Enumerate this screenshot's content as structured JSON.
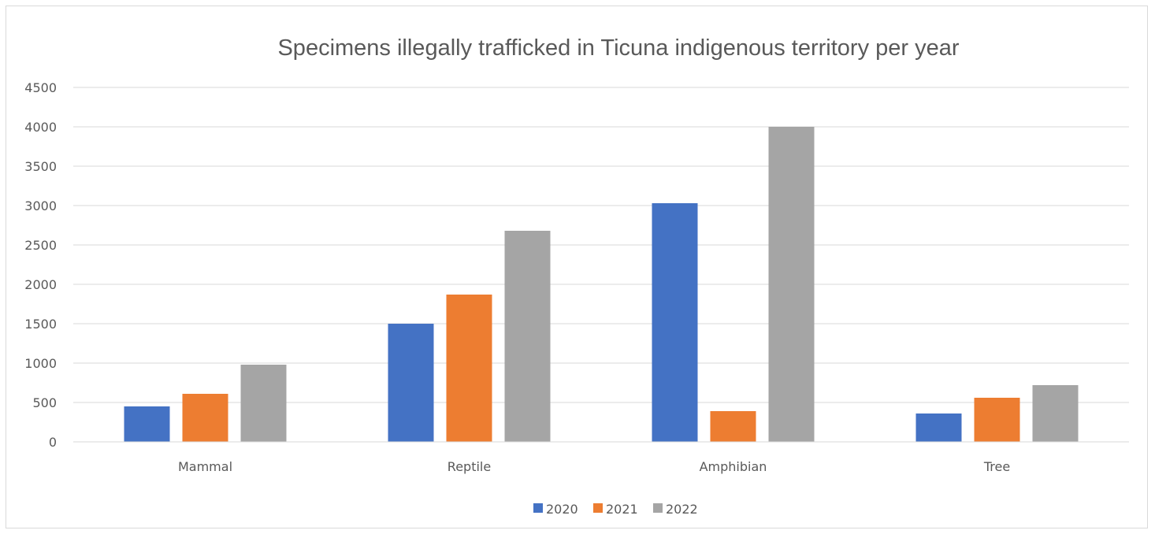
{
  "chart_data": {
    "type": "bar",
    "title": "Specimens illegally trafficked in Ticuna indigenous territory per year",
    "xlabel": "",
    "ylabel": "",
    "categories": [
      "Mammal",
      "Reptile",
      "Amphibian",
      "Tree"
    ],
    "series": [
      {
        "name": "2020",
        "color": "#4472c4",
        "values": [
          450,
          1500,
          3030,
          360
        ]
      },
      {
        "name": "2021",
        "color": "#ed7d31",
        "values": [
          610,
          1870,
          390,
          560
        ]
      },
      {
        "name": "2022",
        "color": "#a5a5a5",
        "values": [
          980,
          2680,
          4000,
          720
        ]
      }
    ],
    "ylim": [
      0,
      4500
    ],
    "yticks": [
      "0",
      "500",
      "1000",
      "1500",
      "2000",
      "2500",
      "3000",
      "3500",
      "4000",
      "4500"
    ],
    "grid": true,
    "legend_position": "bottom"
  }
}
